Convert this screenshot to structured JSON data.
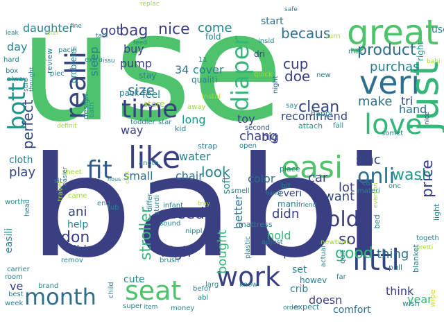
{
  "palette": {
    "background": "#ffffff",
    "dark_indigo": "#3a3f84",
    "dark_blue": "#32457f",
    "blue": "#2f5d8f",
    "teal_blue": "#2d6f8e",
    "teal": "#26828e",
    "teal_green": "#1f968b",
    "green": "#35b779",
    "bright_green": "#4ec36b",
    "yellow_green": "#a0da39",
    "yellow": "#e5e419"
  },
  "words": [
    {
      "text": "use",
      "color": "#4ec36b"
    },
    {
      "text": "babi",
      "color": "#3a3f84"
    },
    {
      "text": "great",
      "color": "#4ec36b"
    },
    {
      "text": "veri",
      "color": "#2d6f8e"
    },
    {
      "text": "love",
      "color": "#35b779"
    },
    {
      "text": "just",
      "color": "#35b779"
    },
    {
      "text": "easi",
      "color": "#4ec36b"
    },
    {
      "text": "realli",
      "color": "#32457f"
    },
    {
      "text": "like",
      "color": "#3a3f84"
    },
    {
      "text": "littl",
      "color": "#32457f"
    },
    {
      "text": "month",
      "color": "#2d6f8e"
    },
    {
      "text": "seat",
      "color": "#4ec36b"
    },
    {
      "text": "work",
      "color": "#3a3f84"
    },
    {
      "text": "time",
      "color": "#3a3f84"
    },
    {
      "text": "fit",
      "color": "#2f5d8f"
    },
    {
      "text": "bottl",
      "color": "#1f968b"
    },
    {
      "text": "diaper",
      "color": "#35b779"
    },
    {
      "text": "product",
      "color": "#2d6f8e"
    },
    {
      "text": "onli",
      "color": "#2d6f8e"
    },
    {
      "text": "old",
      "color": "#3a3f84"
    },
    {
      "text": "stroller",
      "color": "#35b779"
    },
    {
      "text": "clean",
      "color": "#32457f"
    },
    {
      "text": "becaus",
      "color": "#2d6f8e"
    },
    {
      "text": "nice",
      "color": "#3a3f84"
    },
    {
      "text": "bag",
      "color": "#3a3f84"
    },
    {
      "text": "make",
      "color": "#2d6f8e"
    },
    {
      "text": "wash",
      "color": "#1f968b"
    },
    {
      "text": "good",
      "color": "#35b779"
    },
    {
      "text": "son",
      "color": "#3a3f84"
    },
    {
      "text": "need",
      "color": "#3a3f84"
    },
    {
      "text": "perfect",
      "color": "#32457f"
    },
    {
      "text": "look",
      "color": "#26828e"
    },
    {
      "text": "don",
      "color": "#3a3f84"
    },
    {
      "text": "bought",
      "color": "#35b779"
    },
    {
      "text": "recommend",
      "color": "#32457f"
    },
    {
      "text": "cup",
      "color": "#3a3f84"
    },
    {
      "text": "doe",
      "color": "#3a3f84"
    },
    {
      "text": "purchas",
      "color": "#26828e"
    },
    {
      "text": "tri",
      "color": "#32457f"
    },
    {
      "text": "hand",
      "color": "#2d6f8e"
    },
    {
      "text": "sinc",
      "color": "#32457f"
    },
    {
      "text": "lot",
      "color": "#3a3f84"
    },
    {
      "text": "want",
      "color": "#32457f"
    },
    {
      "text": "price",
      "color": "#3a3f84"
    },
    {
      "text": "chang",
      "color": "#3a3f84"
    },
    {
      "text": "thing",
      "color": "#2d6f8e"
    },
    {
      "text": "size",
      "color": "#2d6f8e"
    },
    {
      "text": "sleep",
      "color": "#26828e"
    },
    {
      "text": "got",
      "color": "#3a3f84"
    },
    {
      "text": "daughter",
      "color": "#26828e"
    },
    {
      "text": "day",
      "color": "#26828e"
    },
    {
      "text": "come",
      "color": "#26828e"
    },
    {
      "text": "pump",
      "color": "#3a3f84"
    },
    {
      "text": "buy",
      "color": "#3a3f84"
    },
    {
      "text": "cover",
      "color": "#26828e"
    },
    {
      "text": "34",
      "color": "#2d6f8e"
    },
    {
      "text": "way",
      "color": "#3a3f84"
    },
    {
      "text": "long",
      "color": "#1f968b"
    },
    {
      "text": "water",
      "color": "#26828e"
    },
    {
      "text": "small",
      "color": "#2d6f8e"
    },
    {
      "text": "chair",
      "color": "#2d6f8e"
    },
    {
      "text": "soft",
      "color": "#1f968b"
    },
    {
      "text": "color",
      "color": "#2d6f8e"
    },
    {
      "text": "car",
      "color": "#3a3f84"
    },
    {
      "text": "high",
      "color": "#3a3f84"
    },
    {
      "text": "play",
      "color": "#32457f"
    },
    {
      "text": "cloth",
      "color": "#26828e"
    },
    {
      "text": "ani",
      "color": "#32457f"
    },
    {
      "text": "did",
      "color": "#32457f"
    },
    {
      "text": "didn",
      "color": "#3a3f84"
    },
    {
      "text": "hold",
      "color": "#35b779"
    },
    {
      "text": "pad",
      "color": "#3a3f84"
    },
    {
      "text": "better",
      "color": "#2d6f8e"
    },
    {
      "text": "big",
      "color": "#3a3f84"
    },
    {
      "text": "toy",
      "color": "#32457f"
    },
    {
      "text": "easili",
      "color": "#26828e"
    },
    {
      "text": "help",
      "color": "#26828e"
    },
    {
      "text": "ve",
      "color": "#3a3f84"
    },
    {
      "text": "cute",
      "color": "#26828e"
    },
    {
      "text": "set",
      "color": "#26828e"
    },
    {
      "text": "crib",
      "color": "#26828e"
    },
    {
      "text": "think",
      "color": "#3a3f84"
    },
    {
      "text": "year",
      "color": "#35b779"
    },
    {
      "text": "doesn",
      "color": "#3a3f84"
    },
    {
      "text": "comfort",
      "color": "#2d6f8e"
    },
    {
      "text": "start",
      "color": "#2d6f8e"
    },
    {
      "text": "right",
      "color": "#1f968b"
    },
    {
      "text": "problem",
      "color": "#26828e"
    },
    {
      "text": "review",
      "color": "#26828e"
    },
    {
      "text": "everi",
      "color": "#32457f"
    },
    {
      "text": "mani",
      "color": "#26828e"
    },
    {
      "text": "howev",
      "color": "#26828e"
    },
    {
      "text": "feel",
      "color": "#26828e"
    },
    {
      "text": "store",
      "color": "#a0da39"
    },
    {
      "text": "pack",
      "color": "#26828e"
    },
    {
      "text": "stay",
      "color": "#26828e"
    },
    {
      "text": "qualiti",
      "color": "#26828e"
    },
    {
      "text": "fold",
      "color": "#26828e"
    },
    {
      "text": "dri",
      "color": "#3a3f84"
    },
    {
      "text": "insid",
      "color": "#26828e"
    },
    {
      "text": "night",
      "color": "#2d6f8e"
    },
    {
      "text": "design",
      "color": "#26828e"
    },
    {
      "text": "bath",
      "color": "#1f968b"
    },
    {
      "text": "toddler",
      "color": "#26828e"
    },
    {
      "text": "star",
      "color": "#26828e"
    },
    {
      "text": "kid",
      "color": "#26828e"
    },
    {
      "text": "away",
      "color": "#a0da39"
    },
    {
      "text": "second",
      "color": "#32457f"
    },
    {
      "text": "attach",
      "color": "#1f968b"
    },
    {
      "text": "happi",
      "color": "#26828e"
    },
    {
      "text": "fall",
      "color": "#26828e"
    },
    {
      "text": "somet",
      "color": "#26828e"
    },
    {
      "text": "strap",
      "color": "#26828e"
    },
    {
      "text": "open",
      "color": "#26828e"
    },
    {
      "text": "place",
      "color": "#26828e"
    },
    {
      "text": "bit",
      "color": "#26828e"
    },
    {
      "text": "cat",
      "color": "#26828e"
    },
    {
      "text": "materi",
      "color": "#26828e"
    },
    {
      "text": "onc",
      "color": "#26828e"
    },
    {
      "text": "sheet",
      "color": "#a0da39"
    },
    {
      "text": "sit",
      "color": "#26828e"
    },
    {
      "text": "anoth",
      "color": "#26828e"
    },
    {
      "text": "smell",
      "color": "#26828e"
    },
    {
      "text": "end",
      "color": "#26828e"
    },
    {
      "text": "tub",
      "color": "#26828e"
    },
    {
      "text": "differ",
      "color": "#26828e"
    },
    {
      "text": "sturdi",
      "color": "#26828e"
    },
    {
      "text": "infant",
      "color": "#26828e"
    },
    {
      "text": "sound",
      "color": "#26828e"
    },
    {
      "text": "mattress",
      "color": "#26828e"
    },
    {
      "text": "plastic",
      "color": "#26828e"
    },
    {
      "text": "adjust",
      "color": "#26828e"
    },
    {
      "text": "newborn",
      "color": "#a0da39"
    },
    {
      "text": "actual",
      "color": "#26828e"
    },
    {
      "text": "quit",
      "color": "#26828e"
    },
    {
      "text": "togeth",
      "color": "#26828e"
    },
    {
      "text": "pretti",
      "color": "#a0da39"
    },
    {
      "text": "pull",
      "color": "#26828e"
    },
    {
      "text": "blanket",
      "color": "#26828e"
    },
    {
      "text": "bed",
      "color": "#26828e"
    },
    {
      "text": "light",
      "color": "#26828e"
    },
    {
      "text": "wipe",
      "color": "#e5e419"
    },
    {
      "text": "wish",
      "color": "#26828e"
    },
    {
      "text": "expect",
      "color": "#26828e"
    },
    {
      "text": "order",
      "color": "#26828e"
    },
    {
      "text": "know",
      "color": "#26828e"
    },
    {
      "text": "larg",
      "color": "#26828e"
    },
    {
      "text": "abl",
      "color": "#26828e"
    },
    {
      "text": "befor",
      "color": "#26828e"
    },
    {
      "text": "money",
      "color": "#26828e"
    },
    {
      "text": "item",
      "color": "#26828e"
    },
    {
      "text": "super",
      "color": "#26828e"
    },
    {
      "text": "child",
      "color": "#26828e"
    },
    {
      "text": "brand",
      "color": "#26828e"
    },
    {
      "text": "room",
      "color": "#26828e"
    },
    {
      "text": "best",
      "color": "#26828e"
    },
    {
      "text": "week",
      "color": "#26828e"
    },
    {
      "text": "carrier",
      "color": "#26828e"
    },
    {
      "text": "remov",
      "color": "#26828e"
    },
    {
      "text": "brush",
      "color": "#26828e"
    },
    {
      "text": "nippl",
      "color": "#26828e"
    },
    {
      "text": "head",
      "color": "#26828e"
    },
    {
      "text": "worth",
      "color": "#26828e"
    },
    {
      "text": "travel",
      "color": "#a0da39"
    },
    {
      "text": "easier",
      "color": "#26828e"
    },
    {
      "text": "came",
      "color": "#a0da39"
    },
    {
      "text": "hous",
      "color": "#26828e"
    },
    {
      "text": "carri",
      "color": "#a0da39"
    },
    {
      "text": "tray",
      "color": "#a0da39"
    },
    {
      "text": "friend",
      "color": "#26828e"
    },
    {
      "text": "everyon",
      "color": "#a0da39"
    },
    {
      "text": "handl",
      "color": "#26828e"
    },
    {
      "text": "far",
      "color": "#26828e"
    },
    {
      "text": "say",
      "color": "#26828e"
    },
    {
      "text": "new",
      "color": "#26828e"
    },
    {
      "text": "milk",
      "color": "#26828e"
    },
    {
      "text": "turn",
      "color": "#a0da39"
    },
    {
      "text": "safe",
      "color": "#26828e"
    },
    {
      "text": "replac",
      "color": "#a0da39"
    },
    {
      "text": "feed",
      "color": "#26828e"
    },
    {
      "text": "issu",
      "color": "#26828e"
    },
    {
      "text": "11",
      "color": "#26828e"
    },
    {
      "text": "quick",
      "color": "#a0da39"
    },
    {
      "text": "instal",
      "color": "#a0da39"
    },
    {
      "text": "piec",
      "color": "#26828e"
    },
    {
      "text": "extra",
      "color": "#26828e"
    },
    {
      "text": "pacifi",
      "color": "#26828e"
    },
    {
      "text": "tabl",
      "color": "#26828e"
    },
    {
      "text": "fine",
      "color": "#26828e"
    },
    {
      "text": "litter",
      "color": "#a0da39"
    },
    {
      "text": "leak",
      "color": "#26828e"
    },
    {
      "text": "hard",
      "color": "#26828e"
    },
    {
      "text": "box",
      "color": "#26828e"
    },
    {
      "text": "alway",
      "color": "#26828e"
    },
    {
      "text": "sure",
      "color": "#26828e"
    },
    {
      "text": "thought",
      "color": "#26828e"
    },
    {
      "text": "definit",
      "color": "#a0da39"
    },
    {
      "text": "nice",
      "color": "#3a3f84"
    },
    {
      "text": "use",
      "color": "#26828e"
    },
    {
      "text": "babi",
      "color": "#a0da39"
    }
  ]
}
